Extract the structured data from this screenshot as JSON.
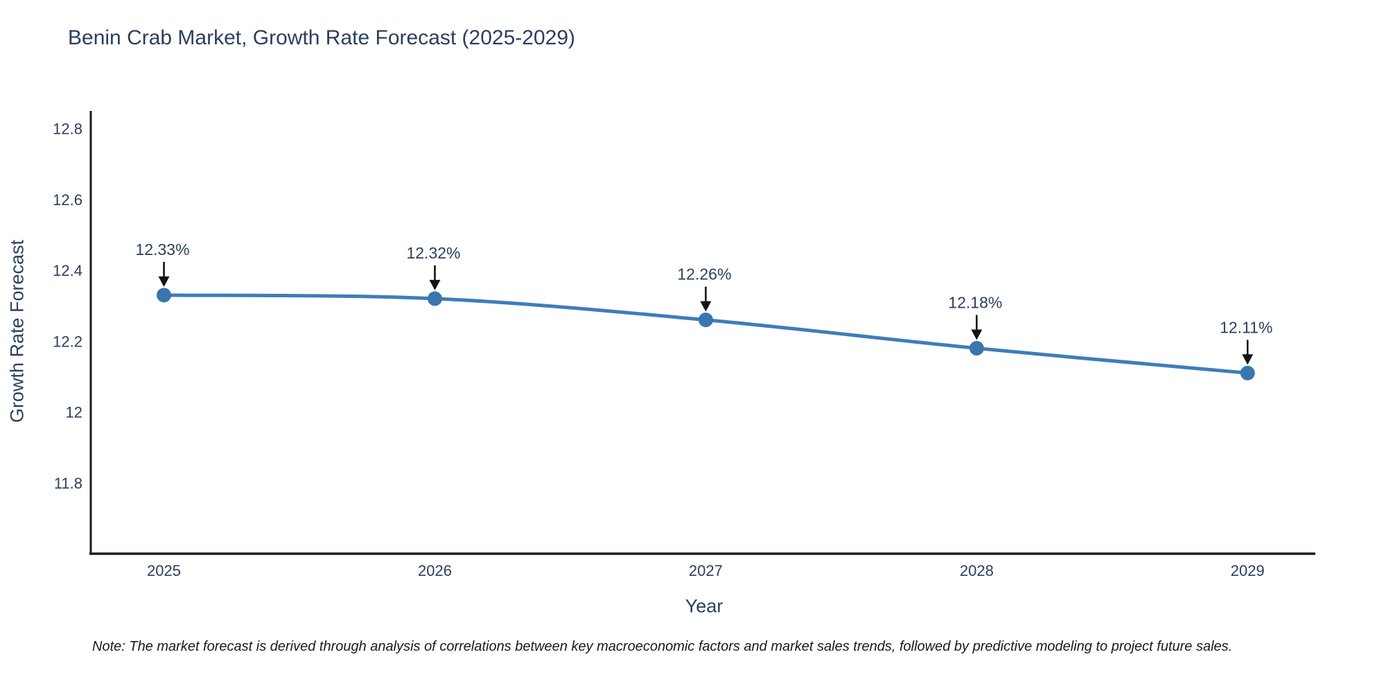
{
  "title": "Benin Crab Market, Growth Rate Forecast (2025-2029)",
  "note": "Note: The market forecast is derived through analysis of correlations between key macroeconomic factors and market sales trends, followed by predictive modeling to project future sales.",
  "chart_data": {
    "type": "line",
    "title": "Benin Crab Market, Growth Rate Forecast (2025-2029)",
    "xlabel": "Year",
    "ylabel": "Growth Rate Forecast",
    "x": [
      2025,
      2026,
      2027,
      2028,
      2029
    ],
    "x_tick_labels": [
      "2025",
      "2026",
      "2027",
      "2028",
      "2029"
    ],
    "series": [
      {
        "name": "Growth Rate Forecast",
        "values": [
          12.33,
          12.32,
          12.26,
          12.18,
          12.11
        ]
      }
    ],
    "point_labels": [
      "12.33%",
      "12.32%",
      "12.26%",
      "12.18%",
      "12.11%"
    ],
    "y_ticks": [
      11.8,
      12,
      12.2,
      12.4,
      12.6,
      12.8
    ],
    "y_tick_labels": [
      "11.8",
      "12",
      "12.2",
      "12.4",
      "12.6",
      "12.8"
    ],
    "ylim": [
      11.6,
      12.85
    ],
    "xlim": [
      2024.73,
      2029.25
    ],
    "grid": false,
    "legend": false,
    "annotations_have_arrows": true,
    "colors": {
      "line": "#3f7cba",
      "marker": "#3a75ad",
      "axis_line": "#1c1c1c",
      "tick_text": "#2a3f5f",
      "annotation_text": "#2a3f5f",
      "arrow": "#141414",
      "title_text": "#2a3f5f",
      "note_text": "#1a1a1a",
      "background": "#ffffff"
    }
  }
}
